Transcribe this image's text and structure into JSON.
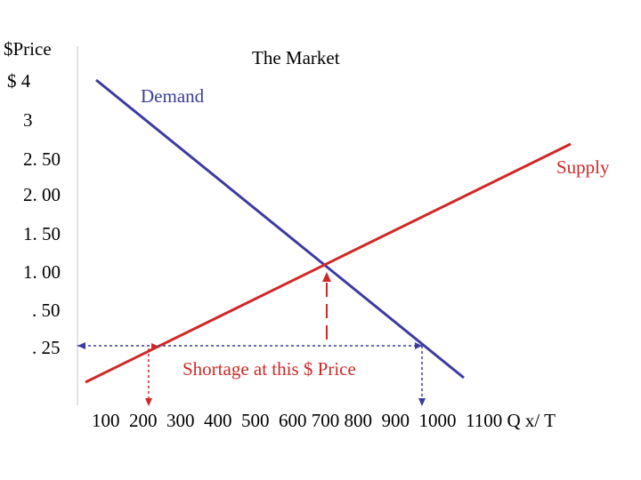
{
  "chart_data": {
    "type": "line",
    "title": "The Market",
    "ylabel": "$Price",
    "xlabel": "Q x/ T",
    "y_tick_labels": [
      "$ 4",
      "3",
      "2. 50",
      "2. 00",
      "1. 50",
      "1. 00",
      ". 50",
      ". 25"
    ],
    "x_tick_labels": [
      "100",
      "200",
      "300",
      "400",
      "500",
      "600",
      "700",
      "800",
      "900",
      "1000",
      "1100"
    ],
    "grid": false,
    "series": [
      {
        "name": "Demand",
        "color": "#3c3ca0",
        "points": [
          {
            "x": 100,
            "y": "$ 4"
          },
          {
            "x": 1000,
            "y": "below . 25"
          }
        ]
      },
      {
        "name": "Supply",
        "color": "#d02828",
        "points": [
          {
            "x": 100,
            "y": "below . 25"
          },
          {
            "x": 1100,
            "y": "above 2. 50"
          }
        ]
      }
    ],
    "equilibrium": {
      "x": 600,
      "y": "1. 00"
    },
    "price_line": {
      "y": ". 25",
      "quantity_supplied": 200,
      "quantity_demanded": 850,
      "color": "#3c3ca0"
    },
    "annotation": {
      "text": "Shortage at this $ Price",
      "color": "#d02828"
    }
  }
}
